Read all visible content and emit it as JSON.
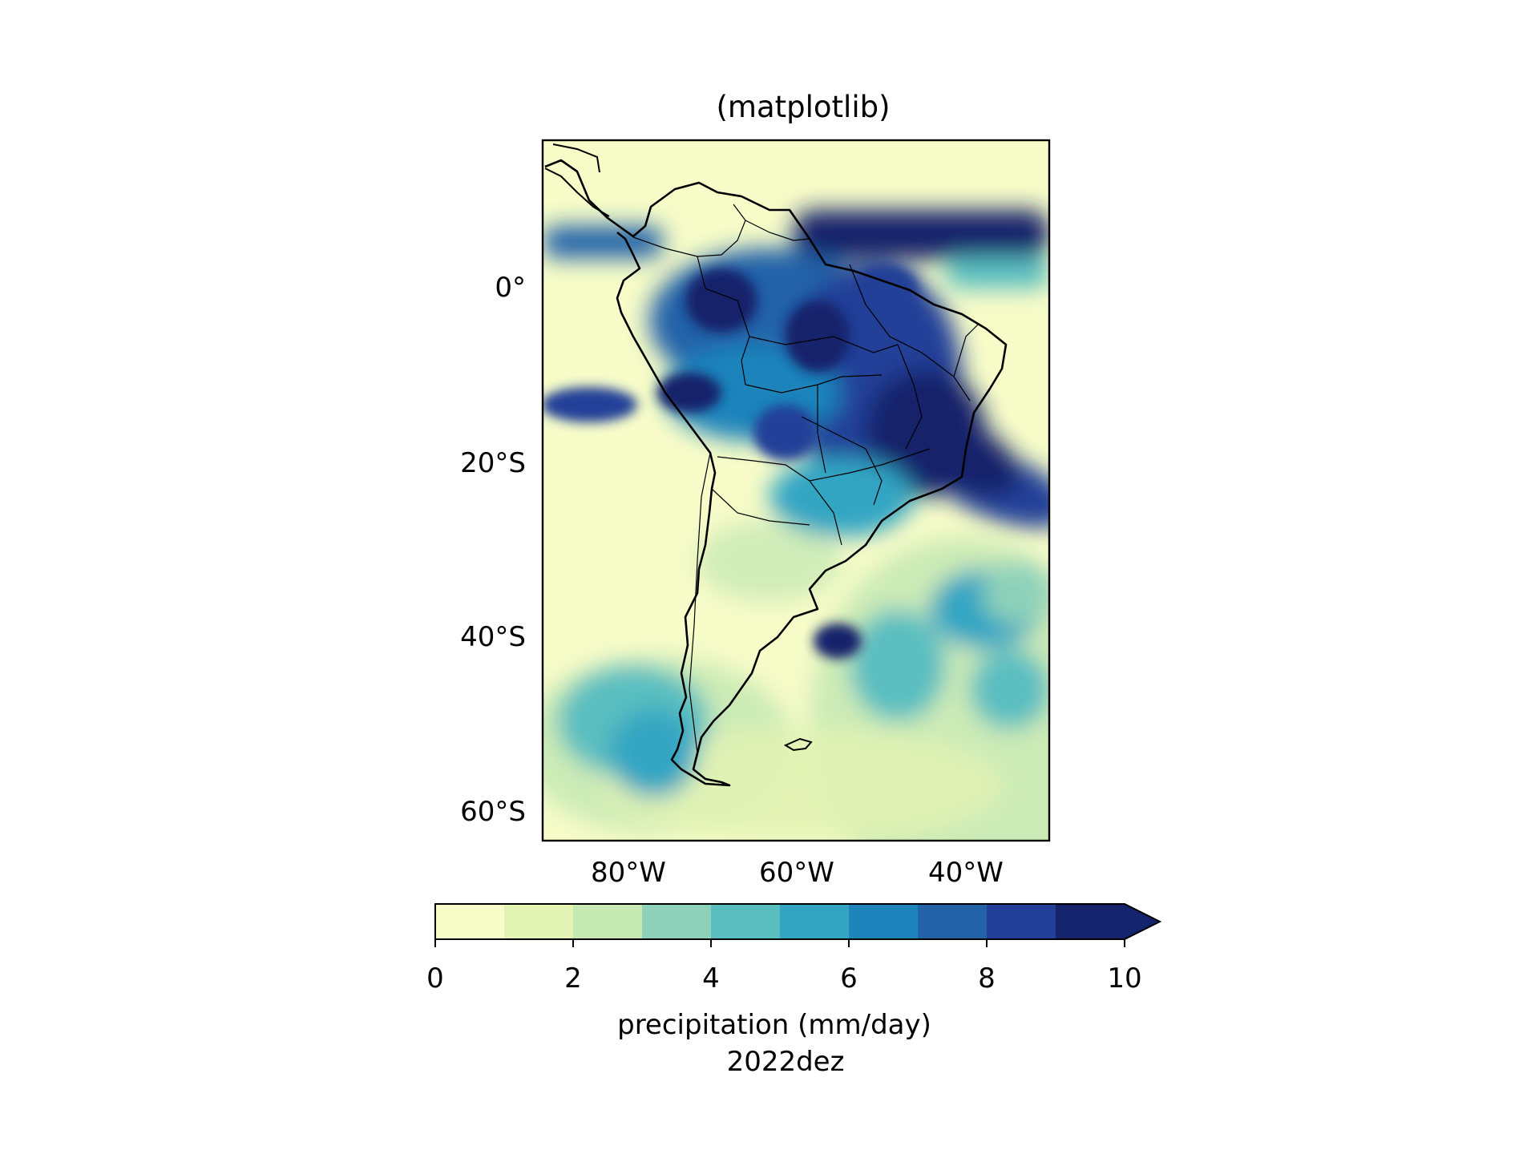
{
  "title": "(matplotlib)",
  "map": {
    "lat_ticks": [
      "0°",
      "20°S",
      "40°S",
      "60°S"
    ],
    "lon_ticks": [
      "80°W",
      "60°W",
      "40°W"
    ],
    "lon_range": [
      -90,
      -30
    ],
    "lat_range": [
      -63,
      17
    ],
    "land_region": "South America",
    "variable": "precipitation",
    "period": "2022dez"
  },
  "colorbar": {
    "ticks": [
      "0",
      "2",
      "4",
      "6",
      "8",
      "10"
    ],
    "levels": [
      0,
      1,
      2,
      3,
      4,
      5,
      6,
      7,
      8,
      9,
      10
    ],
    "colors": [
      "#f7fcc9",
      "#e2f3b4",
      "#c6e9b4",
      "#8ed1ba",
      "#5abec0",
      "#33a5c3",
      "#1f84bb",
      "#2462a8",
      "#243f98",
      "#14236b"
    ],
    "extend": "max",
    "label_line1": "precipitation (mm/day)",
    "label_line2": "2022dez"
  }
}
